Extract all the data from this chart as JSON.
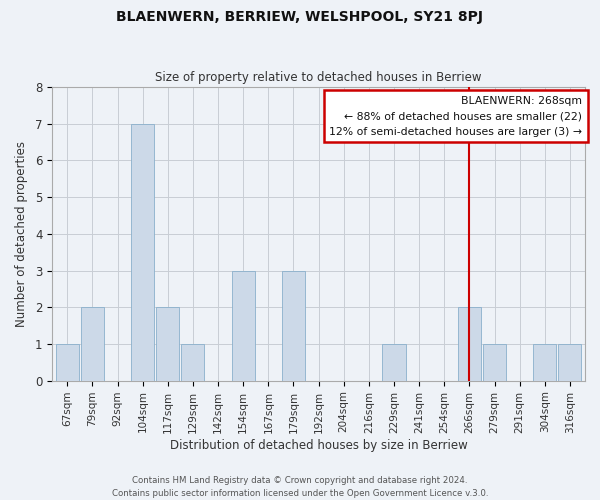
{
  "title": "BLAENWERN, BERRIEW, WELSHPOOL, SY21 8PJ",
  "subtitle": "Size of property relative to detached houses in Berriew",
  "xlabel": "Distribution of detached houses by size in Berriew",
  "ylabel": "Number of detached properties",
  "categories": [
    "67sqm",
    "79sqm",
    "92sqm",
    "104sqm",
    "117sqm",
    "129sqm",
    "142sqm",
    "154sqm",
    "167sqm",
    "179sqm",
    "192sqm",
    "204sqm",
    "216sqm",
    "229sqm",
    "241sqm",
    "254sqm",
    "266sqm",
    "279sqm",
    "291sqm",
    "304sqm",
    "316sqm"
  ],
  "values": [
    1,
    2,
    0,
    7,
    2,
    1,
    0,
    3,
    0,
    3,
    0,
    0,
    0,
    1,
    0,
    0,
    2,
    1,
    0,
    1,
    1
  ],
  "bar_color": "#ccd9e8",
  "bar_edgecolor": "#8ab0cc",
  "marker_value": "266sqm",
  "marker_line_color": "#cc0000",
  "annotation_line1": "BLAENWERN: 268sqm",
  "annotation_line2": "← 88% of detached houses are smaller (22)",
  "annotation_line3": "12% of semi-detached houses are larger (3) →",
  "annotation_box_facecolor": "#ffffff",
  "annotation_box_edgecolor": "#cc0000",
  "ylim": [
    0,
    8
  ],
  "yticks": [
    0,
    1,
    2,
    3,
    4,
    5,
    6,
    7,
    8
  ],
  "background_color": "#eef2f7",
  "grid_color": "#c8cdd4",
  "title_color": "#111111",
  "footer1": "Contains HM Land Registry data © Crown copyright and database right 2024.",
  "footer2": "Contains public sector information licensed under the Open Government Licence v.3.0."
}
